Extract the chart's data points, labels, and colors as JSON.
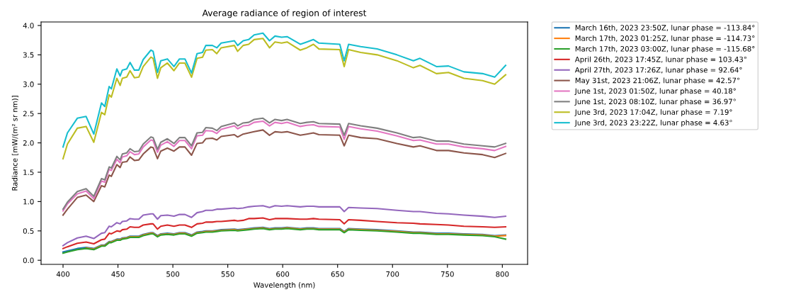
{
  "chart_data": {
    "type": "line",
    "title": "Average radiance of region of interest",
    "xlabel": "Wavelength (nm)",
    "ylabel": "Radiance [mW/(m² sr nm)]",
    "x": [
      400,
      404,
      413,
      421,
      428,
      435,
      438,
      442,
      444,
      449,
      452,
      454,
      458,
      461,
      465,
      469,
      473,
      480,
      482,
      486,
      489,
      495,
      501,
      506,
      511,
      517,
      522,
      527,
      530,
      536,
      540,
      544,
      556,
      559,
      564,
      569,
      574,
      582,
      588,
      593,
      599,
      604,
      616,
      622,
      628,
      633,
      652,
      656,
      660,
      671,
      686,
      704,
      719,
      725,
      740,
      751,
      765,
      782,
      793,
      803
    ],
    "xlim": [
      380,
      823
    ],
    "xticks": [
      400,
      450,
      500,
      550,
      600,
      650,
      700,
      750,
      800
    ],
    "ylim": [
      -0.07,
      4.06
    ],
    "yticks": [
      {
        "value": 0,
        "label": "0.0"
      },
      {
        "value": 0.5,
        "label": "0.5"
      },
      {
        "value": 1,
        "label": "1.0"
      },
      {
        "value": 1.5,
        "label": "1.5"
      },
      {
        "value": 2,
        "label": "2.0"
      },
      {
        "value": 2.5,
        "label": "2.5"
      },
      {
        "value": 3,
        "label": "3.0"
      },
      {
        "value": 3.5,
        "label": "3.5"
      },
      {
        "value": 4,
        "label": "4.0"
      }
    ],
    "grid": false,
    "legend": "right",
    "marker": "none",
    "line_style": "solid",
    "series": [
      {
        "name": "March 16th, 2023 23:50Z, lunar phase = -113.84°",
        "color": "#1f77b4",
        "values": [
          0.14,
          0.16,
          0.2,
          0.22,
          0.2,
          0.26,
          0.26,
          0.32,
          0.32,
          0.36,
          0.36,
          0.38,
          0.39,
          0.41,
          0.41,
          0.41,
          0.44,
          0.47,
          0.47,
          0.42,
          0.45,
          0.46,
          0.45,
          0.47,
          0.47,
          0.43,
          0.48,
          0.49,
          0.5,
          0.5,
          0.51,
          0.52,
          0.53,
          0.52,
          0.53,
          0.54,
          0.55,
          0.56,
          0.54,
          0.55,
          0.55,
          0.56,
          0.54,
          0.55,
          0.55,
          0.54,
          0.54,
          0.49,
          0.54,
          0.53,
          0.52,
          0.5,
          0.48,
          0.48,
          0.46,
          0.46,
          0.45,
          0.44,
          0.42,
          0.43
        ]
      },
      {
        "name": "March 17th, 2023 01:25Z, lunar phase = -114.73°",
        "color": "#ff7f0e",
        "values": [
          null,
          null,
          null,
          0.21,
          0.19,
          0.25,
          0.25,
          0.31,
          0.31,
          0.35,
          0.35,
          0.37,
          0.38,
          0.4,
          0.4,
          0.4,
          0.43,
          0.46,
          0.46,
          0.41,
          0.44,
          0.45,
          0.44,
          0.46,
          0.46,
          0.42,
          0.47,
          0.48,
          0.49,
          0.49,
          0.5,
          0.51,
          0.52,
          0.51,
          0.52,
          0.53,
          0.54,
          0.55,
          0.53,
          0.54,
          0.54,
          0.55,
          0.53,
          0.54,
          0.54,
          0.53,
          0.53,
          0.48,
          0.53,
          0.52,
          0.51,
          0.49,
          0.47,
          0.47,
          0.45,
          0.45,
          0.44,
          0.43,
          0.41,
          0.42
        ]
      },
      {
        "name": "March 17th, 2023 03:00Z, lunar phase = -115.68°",
        "color": "#2ca02c",
        "values": [
          0.12,
          0.14,
          0.18,
          0.2,
          0.18,
          0.24,
          0.24,
          0.3,
          0.3,
          0.34,
          0.34,
          0.36,
          0.37,
          0.39,
          0.39,
          0.39,
          0.42,
          0.45,
          0.45,
          0.4,
          0.43,
          0.44,
          0.43,
          0.45,
          0.45,
          0.41,
          0.46,
          0.47,
          0.48,
          0.48,
          0.49,
          0.5,
          0.51,
          0.5,
          0.51,
          0.52,
          0.53,
          0.54,
          0.52,
          0.53,
          0.53,
          0.54,
          0.52,
          0.53,
          0.53,
          0.52,
          0.52,
          0.47,
          0.52,
          0.51,
          0.5,
          0.48,
          0.46,
          0.46,
          0.44,
          0.44,
          0.43,
          0.42,
          0.4,
          0.36
        ]
      },
      {
        "name": "April 26th, 2023 17:45Z, lunar phase = 103.43°",
        "color": "#d62728",
        "values": [
          0.2,
          0.23,
          0.29,
          0.31,
          0.28,
          0.35,
          0.36,
          0.46,
          0.45,
          0.5,
          0.49,
          0.52,
          0.53,
          0.57,
          0.56,
          0.56,
          0.6,
          0.62,
          0.62,
          0.53,
          0.58,
          0.6,
          0.58,
          0.6,
          0.6,
          0.56,
          0.62,
          0.63,
          0.65,
          0.65,
          0.66,
          0.66,
          0.68,
          0.67,
          0.68,
          0.71,
          0.71,
          0.72,
          0.69,
          0.71,
          0.71,
          0.71,
          0.7,
          0.7,
          0.71,
          0.7,
          0.69,
          0.62,
          0.69,
          0.68,
          0.66,
          0.64,
          0.63,
          0.62,
          0.61,
          0.6,
          0.58,
          0.57,
          0.56,
          0.57
        ]
      },
      {
        "name": "April 27th, 2023 17:26Z, lunar phase = 92.64°",
        "color": "#9467bd",
        "values": [
          0.25,
          0.3,
          0.38,
          0.41,
          0.37,
          0.46,
          0.47,
          0.58,
          0.57,
          0.64,
          0.62,
          0.66,
          0.67,
          0.71,
          0.7,
          0.7,
          0.77,
          0.79,
          0.79,
          0.7,
          0.76,
          0.77,
          0.75,
          0.78,
          0.78,
          0.73,
          0.81,
          0.83,
          0.85,
          0.85,
          0.87,
          0.87,
          0.89,
          0.88,
          0.89,
          0.91,
          0.92,
          0.93,
          0.9,
          0.93,
          0.92,
          0.93,
          0.91,
          0.92,
          0.92,
          0.91,
          0.91,
          0.83,
          0.9,
          0.89,
          0.88,
          0.85,
          0.83,
          0.83,
          0.8,
          0.79,
          0.77,
          0.75,
          0.73,
          0.75
        ]
      },
      {
        "name": "May 31st, 2023 21:06Z, lunar phase = 42.57°",
        "color": "#8c564b",
        "values": [
          0.77,
          0.87,
          1.07,
          1.11,
          1.0,
          1.27,
          1.25,
          1.45,
          1.43,
          1.63,
          1.58,
          1.67,
          1.68,
          1.76,
          1.7,
          1.71,
          1.81,
          1.93,
          1.92,
          1.73,
          1.86,
          1.91,
          1.86,
          1.93,
          1.93,
          1.79,
          1.99,
          2.0,
          2.07,
          2.08,
          2.05,
          2.11,
          2.14,
          2.1,
          2.15,
          2.17,
          2.19,
          2.22,
          2.13,
          2.19,
          2.18,
          2.19,
          2.13,
          2.15,
          2.17,
          2.14,
          2.13,
          1.95,
          2.13,
          2.09,
          2.07,
          1.99,
          1.93,
          1.95,
          1.87,
          1.87,
          1.83,
          1.8,
          1.75,
          1.82
        ]
      },
      {
        "name": "June 1st, 2023 01:50Z, lunar phase = 40.18°",
        "color": "#e377c2",
        "values": [
          0.84,
          0.96,
          1.13,
          1.18,
          1.05,
          1.35,
          1.33,
          1.55,
          1.53,
          1.72,
          1.66,
          1.76,
          1.78,
          1.85,
          1.8,
          1.81,
          1.93,
          2.05,
          2.04,
          1.84,
          1.96,
          2.02,
          1.94,
          2.04,
          2.04,
          1.9,
          2.12,
          2.13,
          2.21,
          2.2,
          2.16,
          2.23,
          2.29,
          2.24,
          2.29,
          2.3,
          2.35,
          2.37,
          2.29,
          2.35,
          2.33,
          2.35,
          2.28,
          2.3,
          2.31,
          2.28,
          2.27,
          2.06,
          2.28,
          2.24,
          2.2,
          2.12,
          2.04,
          2.05,
          1.98,
          1.98,
          1.93,
          1.9,
          1.87,
          1.94
        ]
      },
      {
        "name": "June 1st, 2023 08:10Z, lunar phase = 36.97°",
        "color": "#7f7f7f",
        "values": [
          0.87,
          0.99,
          1.17,
          1.22,
          1.09,
          1.39,
          1.37,
          1.59,
          1.57,
          1.77,
          1.71,
          1.81,
          1.83,
          1.9,
          1.85,
          1.86,
          1.98,
          2.1,
          2.09,
          1.89,
          2.01,
          2.07,
          1.99,
          2.09,
          2.09,
          1.95,
          2.17,
          2.18,
          2.26,
          2.25,
          2.21,
          2.28,
          2.34,
          2.29,
          2.34,
          2.35,
          2.4,
          2.42,
          2.34,
          2.4,
          2.38,
          2.4,
          2.33,
          2.35,
          2.36,
          2.33,
          2.32,
          2.13,
          2.33,
          2.29,
          2.25,
          2.17,
          2.09,
          2.1,
          2.03,
          2.03,
          1.98,
          1.95,
          1.93,
          1.99
        ]
      },
      {
        "name": "June 3rd, 2023 17:04Z, lunar phase = 7.19°",
        "color": "#bcbd22",
        "values": [
          1.73,
          1.98,
          2.25,
          2.28,
          2.01,
          2.52,
          2.48,
          2.82,
          2.78,
          3.1,
          2.98,
          3.1,
          3.12,
          3.23,
          3.11,
          3.12,
          3.3,
          3.46,
          3.44,
          3.1,
          3.28,
          3.36,
          3.23,
          3.36,
          3.36,
          3.12,
          3.44,
          3.46,
          3.58,
          3.59,
          3.52,
          3.62,
          3.66,
          3.56,
          3.66,
          3.68,
          3.76,
          3.78,
          3.62,
          3.72,
          3.7,
          3.72,
          3.58,
          3.62,
          3.68,
          3.6,
          3.59,
          3.3,
          3.59,
          3.54,
          3.5,
          3.4,
          3.28,
          3.32,
          3.18,
          3.2,
          3.1,
          3.06,
          3.0,
          3.16
        ]
      },
      {
        "name": "June 3rd, 2023 23:22Z, lunar phase = 4.63°",
        "color": "#17becf",
        "values": [
          1.93,
          2.17,
          2.42,
          2.45,
          2.15,
          2.68,
          2.62,
          2.96,
          2.92,
          3.26,
          3.14,
          3.24,
          3.26,
          3.37,
          3.24,
          3.24,
          3.42,
          3.58,
          3.56,
          3.2,
          3.4,
          3.43,
          3.3,
          3.43,
          3.43,
          3.19,
          3.52,
          3.54,
          3.66,
          3.66,
          3.62,
          3.7,
          3.74,
          3.66,
          3.74,
          3.76,
          3.84,
          3.87,
          3.74,
          3.82,
          3.8,
          3.81,
          3.68,
          3.72,
          3.76,
          3.7,
          3.68,
          3.4,
          3.68,
          3.64,
          3.6,
          3.5,
          3.4,
          3.44,
          3.3,
          3.31,
          3.21,
          3.18,
          3.12,
          3.32
        ]
      }
    ]
  }
}
